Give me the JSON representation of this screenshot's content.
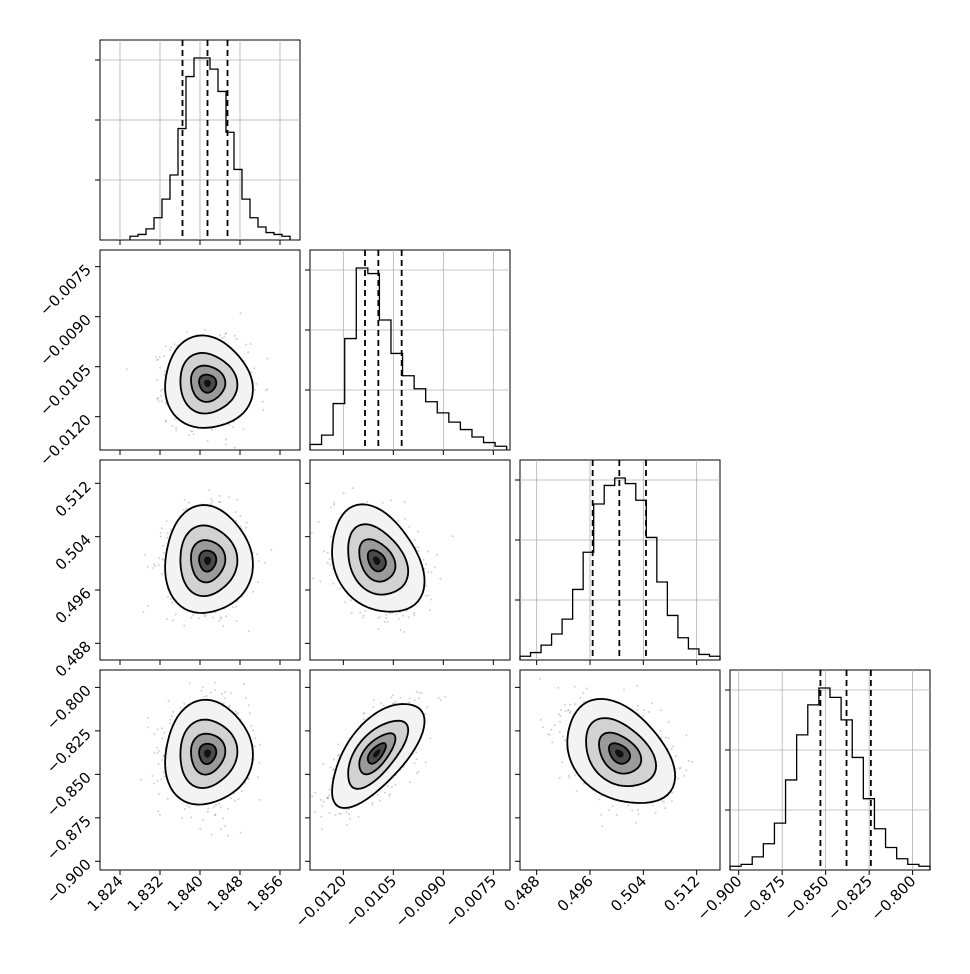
{
  "chart_data": {
    "type": "corner",
    "grid": true,
    "parameters": [
      {
        "range": [
          1.82,
          1.86
        ],
        "ticks": [
          "1.824",
          "1.832",
          "1.840",
          "1.848",
          "1.856"
        ],
        "tick_values": [
          1.824,
          1.832,
          1.84,
          1.848,
          1.856
        ],
        "center": 1.8415,
        "sigma": 0.0038,
        "quantiles": [
          1.8365,
          1.8415,
          1.8455
        ]
      },
      {
        "range": [
          -0.013,
          -0.007
        ],
        "ticks": [
          "-0.0120",
          "-0.0105",
          "-0.0090",
          "-0.0075"
        ],
        "tick_values": [
          -0.012,
          -0.0105,
          -0.009,
          -0.0075
        ],
        "center": -0.011,
        "sigma": 0.0006,
        "quantiles": [
          -0.01135,
          -0.01095,
          -0.01025
        ]
      },
      {
        "range": [
          0.4855,
          0.5155
        ],
        "ticks": [
          "0.488",
          "0.496",
          "0.504",
          "0.512"
        ],
        "tick_values": [
          0.488,
          0.496,
          0.504,
          0.512
        ],
        "center": 0.5004,
        "sigma": 0.0035,
        "quantiles": [
          0.4964,
          0.5004,
          0.5044
        ]
      },
      {
        "range": [
          -0.905,
          -0.79
        ],
        "ticks": [
          "-0.900",
          "-0.875",
          "-0.850",
          "-0.825",
          "-0.800"
        ],
        "tick_values": [
          -0.9,
          -0.875,
          -0.85,
          -0.825,
          -0.8
        ],
        "center": -0.838,
        "sigma": 0.013,
        "quantiles": [
          -0.853,
          -0.838,
          -0.824
        ]
      }
    ],
    "histograms": [
      {
        "bin_edges_range": [
          1.826,
          1.858
        ],
        "counts": [
          2,
          3,
          6,
          12,
          22,
          35,
          60,
          88,
          98,
          98,
          92,
          80,
          58,
          38,
          22,
          12,
          7,
          4,
          3,
          2
        ]
      },
      {
        "bin_edges_range": [
          -0.013,
          -0.0071
        ],
        "counts": [
          3,
          8,
          25,
          60,
          98,
          95,
          70,
          52,
          40,
          33,
          26,
          20,
          15,
          11,
          7,
          4,
          2
        ]
      },
      {
        "bin_edges_range": [
          0.4855,
          0.5155
        ],
        "counts": [
          2,
          4,
          8,
          14,
          22,
          38,
          58,
          84,
          94,
          98,
          95,
          86,
          66,
          42,
          24,
          12,
          6,
          3,
          2
        ]
      },
      {
        "bin_edges_range": [
          -0.905,
          -0.79
        ],
        "counts": [
          2,
          3,
          7,
          14,
          25,
          48,
          72,
          88,
          97,
          92,
          80,
          60,
          38,
          22,
          12,
          6,
          3,
          2
        ]
      }
    ],
    "pairs": [
      {
        "x": 0,
        "y": 1,
        "rho": -0.05
      },
      {
        "x": 0,
        "y": 2,
        "rho": 0.0
      },
      {
        "x": 1,
        "y": 2,
        "rho": -0.3
      },
      {
        "x": 0,
        "y": 3,
        "rho": 0.05
      },
      {
        "x": 1,
        "y": 3,
        "rho": 0.65
      },
      {
        "x": 2,
        "y": 3,
        "rho": -0.35
      }
    ]
  }
}
